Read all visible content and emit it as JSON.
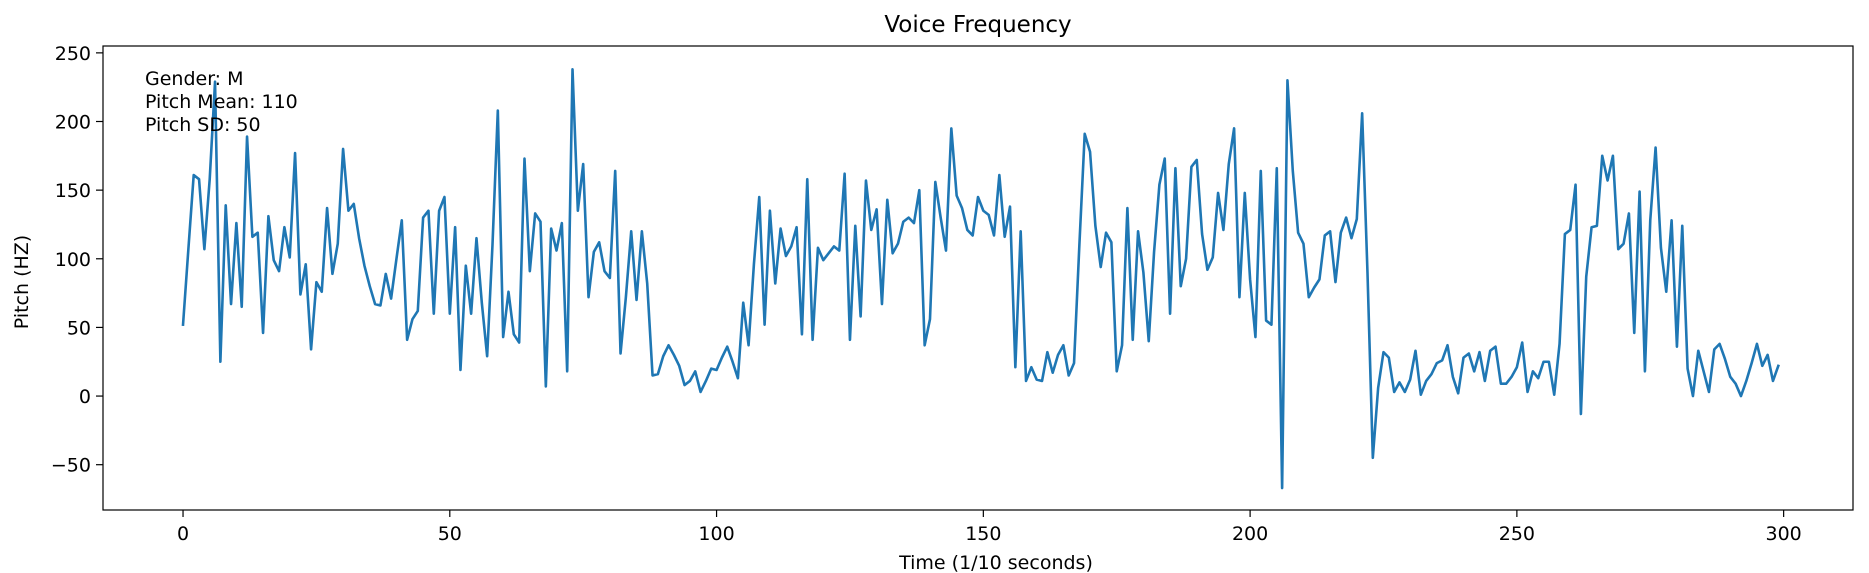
{
  "chart_data": {
    "type": "line",
    "title": "Voice Frequency",
    "xlabel": "Time (1/10 seconds)",
    "ylabel": "Pitch (HZ)",
    "xlim": [
      -15,
      313
    ],
    "ylim": [
      -83,
      255
    ],
    "x_ticks": [
      0,
      50,
      100,
      150,
      200,
      250,
      300
    ],
    "y_ticks": [
      -50,
      0,
      50,
      100,
      150,
      200,
      250
    ],
    "grid": false,
    "annotations": [
      "Gender: M",
      "Pitch Mean: 110",
      "Pitch SD: 50"
    ],
    "series": [
      {
        "color": "#1f77b4",
        "x_start": 0,
        "x_step": 1,
        "values": [
          52,
          107,
          161,
          158,
          107,
          158,
          229,
          25,
          139,
          67,
          126,
          65,
          189,
          116,
          119,
          46,
          131,
          99,
          91,
          123,
          101,
          177,
          74,
          96,
          34,
          83,
          76,
          137,
          89,
          111,
          180,
          135,
          140,
          115,
          95,
          80,
          67,
          66,
          89,
          71,
          100,
          128,
          41,
          56,
          62,
          130,
          135,
          60,
          135,
          145,
          60,
          123,
          19,
          95,
          60,
          115,
          68,
          29,
          110,
          208,
          43,
          76,
          45,
          39,
          173,
          91,
          133,
          127,
          7,
          122,
          106,
          126,
          18,
          238,
          135,
          169,
          72,
          105,
          112,
          91,
          86,
          164,
          31,
          72,
          120,
          70,
          120,
          82,
          15,
          16,
          29,
          37,
          30,
          22,
          8,
          11,
          18,
          3,
          11,
          20,
          19,
          28,
          36,
          25,
          13,
          68,
          37,
          96,
          145,
          52,
          135,
          82,
          122,
          102,
          109,
          123,
          45,
          158,
          41,
          108,
          99,
          104,
          109,
          106,
          162,
          41,
          124,
          58,
          157,
          121,
          136,
          67,
          143,
          104,
          111,
          127,
          130,
          126,
          150,
          37,
          56,
          156,
          130,
          106,
          195,
          146,
          137,
          121,
          117,
          145,
          135,
          132,
          117,
          161,
          116,
          138,
          21,
          120,
          11,
          21,
          12,
          11,
          32,
          17,
          30,
          37,
          15,
          24,
          110,
          191,
          178,
          124,
          94,
          119,
          112,
          18,
          37,
          137,
          41,
          120,
          90,
          40,
          105,
          154,
          173,
          60,
          166,
          80,
          100,
          167,
          172,
          118,
          92,
          101,
          148,
          121,
          169,
          195,
          72,
          148,
          85,
          43,
          164,
          55,
          52,
          166,
          -67,
          230,
          164,
          119,
          111,
          72,
          79,
          85,
          117,
          120,
          83,
          119,
          130,
          115,
          129,
          206,
          90,
          -45,
          6,
          32,
          28,
          3,
          10,
          3,
          12,
          33,
          1,
          11,
          16,
          24,
          26,
          37,
          14,
          2,
          28,
          31,
          18,
          32,
          11,
          33,
          36,
          9,
          9,
          14,
          21,
          39,
          3,
          18,
          13,
          25,
          25,
          1,
          38,
          118,
          121,
          154,
          -13,
          87,
          123,
          124,
          175,
          157,
          175,
          107,
          111,
          133,
          46,
          149,
          18,
          128,
          181,
          108,
          76,
          128,
          36,
          124,
          20,
          0,
          33,
          18,
          3,
          34,
          38,
          27,
          14,
          9,
          0,
          11,
          24,
          38,
          22,
          30,
          11,
          22
        ]
      }
    ]
  }
}
